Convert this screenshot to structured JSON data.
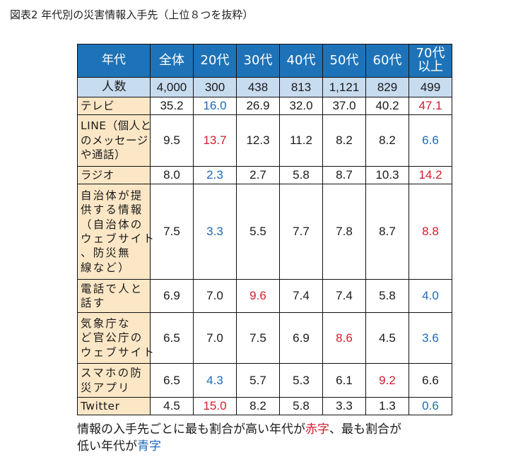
{
  "title": "図表2 年代別の災害情報入手先（上位８つを抜粋）",
  "chart_data": {
    "type": "table",
    "title": "図表2 年代別の災害情報入手先（上位８つを抜粋）",
    "header": [
      "年代",
      "全体",
      "20代",
      "30代",
      "40代",
      "50代",
      "60代",
      "70代以上"
    ],
    "header_lines": [
      [
        "年代"
      ],
      [
        "全体"
      ],
      [
        "20代"
      ],
      [
        "30代"
      ],
      [
        "40代"
      ],
      [
        "50代"
      ],
      [
        "60代"
      ],
      [
        "70代",
        "以上"
      ]
    ],
    "count_row": {
      "label": "人数",
      "values": [
        "4,000",
        "300",
        "438",
        "813",
        "1,121",
        "829",
        "499"
      ]
    },
    "rows": [
      {
        "label": "テレビ",
        "label_lines": [
          "テレビ"
        ],
        "height": 25,
        "values": [
          35.2,
          16.0,
          26.9,
          32.0,
          37.0,
          40.2,
          47.1
        ],
        "display": [
          "35.2",
          "16.0",
          "26.9",
          "32.0",
          "37.0",
          "40.2",
          "47.1"
        ],
        "highest": 6,
        "lowest": 1
      },
      {
        "label": "LINE（個人とのメッセージや通話）",
        "label_lines": [
          "LINE（個人と",
          "のメッセージ",
          "や通話）"
        ],
        "height": 73,
        "values": [
          9.5,
          13.7,
          12.3,
          11.2,
          8.2,
          8.2,
          6.6
        ],
        "display": [
          "9.5",
          "13.7",
          "12.3",
          "11.2",
          "8.2",
          "8.2",
          "6.6"
        ],
        "highest": 1,
        "lowest": 6
      },
      {
        "label": "ラジオ",
        "label_lines": [
          "ラジオ"
        ],
        "height": 25,
        "values": [
          8.0,
          2.3,
          2.7,
          5.8,
          8.7,
          10.3,
          14.2
        ],
        "display": [
          "8.0",
          "2.3",
          "2.7",
          "5.8",
          "8.7",
          "10.3",
          "14.2"
        ],
        "highest": 6,
        "lowest": 1
      },
      {
        "label": "自治体が提供する情報（自治体のウェブサイト、防災無線など）",
        "label_lines": [
          "自治体が提",
          "供する情報",
          "（自治体の",
          "ウェブサイト",
          "、防災無",
          "線など）"
        ],
        "height": 135,
        "justify": true,
        "values": [
          7.5,
          3.3,
          5.5,
          7.7,
          7.8,
          8.7,
          8.8
        ],
        "display": [
          "7.5",
          "3.3",
          "5.5",
          "7.7",
          "7.8",
          "8.7",
          "8.8"
        ],
        "highest": 6,
        "lowest": 1
      },
      {
        "label": "電話で人と話す",
        "label_lines": [
          "電話で人と",
          "話す"
        ],
        "height": 47,
        "justify": true,
        "values": [
          6.9,
          7.0,
          9.6,
          7.4,
          7.4,
          5.8,
          4.0
        ],
        "display": [
          "6.9",
          "7.0",
          "9.6",
          "7.4",
          "7.4",
          "5.8",
          "4.0"
        ],
        "highest": 2,
        "lowest": 6
      },
      {
        "label": "気象庁など官公庁のウェブサイト",
        "label_lines": [
          "気象庁な",
          "ど官公庁の",
          "ウェブサイト"
        ],
        "height": 72,
        "justify": true,
        "values": [
          6.5,
          7.0,
          7.5,
          6.9,
          8.6,
          4.5,
          3.6
        ],
        "display": [
          "6.5",
          "7.0",
          "7.5",
          "6.9",
          "8.6",
          "4.5",
          "3.6"
        ],
        "highest": 4,
        "lowest": 6
      },
      {
        "label": "スマホの防災アプリ",
        "label_lines": [
          "スマホの防",
          "災アプリ"
        ],
        "height": 48,
        "justify": true,
        "values": [
          6.5,
          4.3,
          5.7,
          5.3,
          6.1,
          9.2,
          6.6
        ],
        "display": [
          "6.5",
          "4.3",
          "5.7",
          "5.3",
          "6.1",
          "9.2",
          "6.6"
        ],
        "highest": 5,
        "lowest": 1
      },
      {
        "label": "Twitter",
        "label_lines": [
          "Twitter"
        ],
        "height": 25,
        "values": [
          4.5,
          15.0,
          8.2,
          5.8,
          3.3,
          1.3,
          0.6
        ],
        "display": [
          "4.5",
          "15.0",
          "8.2",
          "5.8",
          "3.3",
          "1.3",
          "0.6"
        ],
        "highest": 1,
        "lowest": 6
      }
    ],
    "colors": {
      "header_bg": "#1e73b8",
      "count_bg": "#c8dcf0",
      "label_bg": "#fbe7c6",
      "highest": "#d51b2b",
      "lowest": "#1e68b8"
    }
  },
  "note": {
    "part1": "情報の入手先ごとに最も割合が高い年代が",
    "red": "赤字",
    "part2": "、最も割合が",
    "part3": "低い年代が",
    "blue": "青字"
  }
}
